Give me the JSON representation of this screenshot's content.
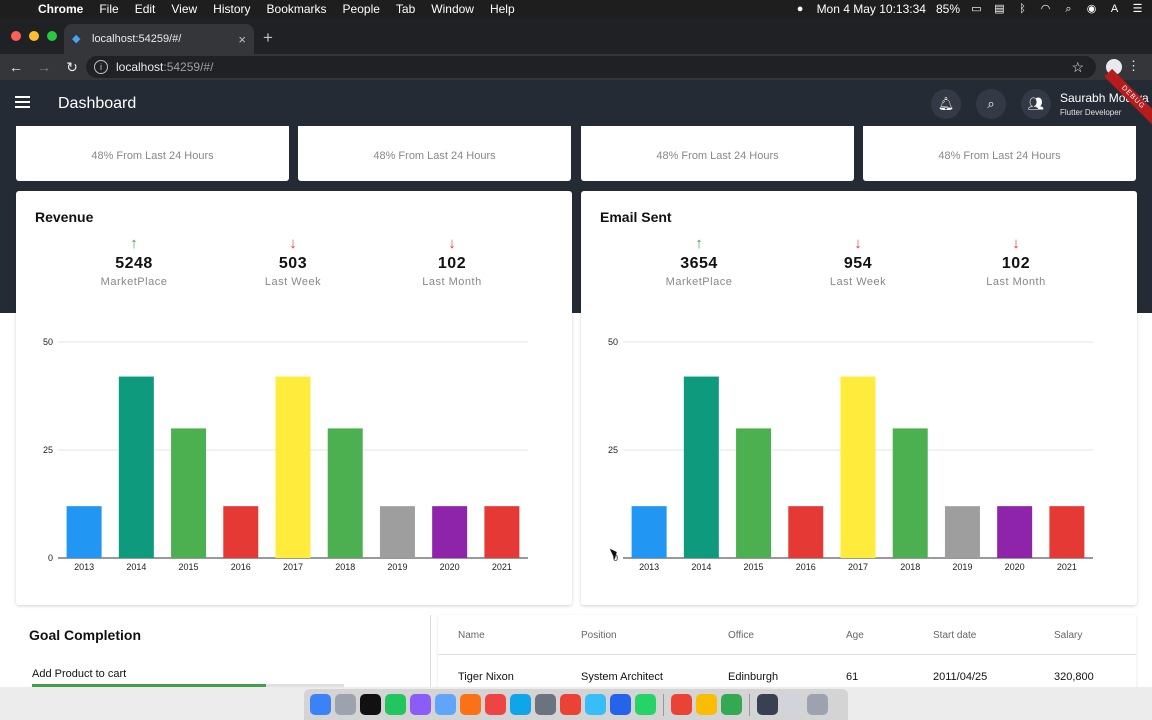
{
  "menubar": {
    "app": "Chrome",
    "items": [
      "File",
      "Edit",
      "View",
      "History",
      "Bookmarks",
      "People",
      "Tab",
      "Window",
      "Help"
    ],
    "datetime": "Mon 4 May  10:13:34",
    "battery": "85%"
  },
  "browser": {
    "tab_title": "localhost:54259/#/",
    "url_host": "localhost",
    "url_path": ":54259/#/"
  },
  "appbar": {
    "title": "Dashboard",
    "user_name": "Saurabh Mourya",
    "user_role": "Flutter Developer",
    "debug_label": "DEBUG"
  },
  "stat_cards": [
    {
      "subtitle": "48% From Last 24 Hours"
    },
    {
      "subtitle": "48% From Last 24 Hours"
    },
    {
      "subtitle": "48% From Last 24 Hours"
    },
    {
      "subtitle": "48% From Last 24 Hours"
    }
  ],
  "revenue": {
    "title": "Revenue",
    "kpis": [
      {
        "direction": "up",
        "value": "5248",
        "label": "MarketPlace"
      },
      {
        "direction": "down",
        "value": "503",
        "label": "Last Week"
      },
      {
        "direction": "down",
        "value": "102",
        "label": "Last Month"
      }
    ]
  },
  "email": {
    "title": "Email Sent",
    "kpis": [
      {
        "direction": "up",
        "value": "3654",
        "label": "MarketPlace"
      },
      {
        "direction": "down",
        "value": "954",
        "label": "Last Week"
      },
      {
        "direction": "down",
        "value": "102",
        "label": "Last Month"
      }
    ]
  },
  "chart_data": [
    {
      "type": "bar",
      "categories": [
        "2013",
        "2014",
        "2015",
        "2016",
        "2017",
        "2018",
        "2019",
        "2020",
        "2021"
      ],
      "values": [
        12,
        42,
        30,
        12,
        42,
        30,
        12,
        12,
        12
      ],
      "colors": [
        "#2196f3",
        "#0e9a7c",
        "#4caf50",
        "#e53935",
        "#ffeb3b",
        "#4caf50",
        "#9e9e9e",
        "#8e24aa",
        "#e53935"
      ],
      "ylim": [
        0,
        50
      ],
      "yticks": [
        0,
        25,
        50
      ],
      "grid": true
    },
    {
      "type": "bar",
      "categories": [
        "2013",
        "2014",
        "2015",
        "2016",
        "2017",
        "2018",
        "2019",
        "2020",
        "2021"
      ],
      "values": [
        12,
        42,
        30,
        12,
        42,
        30,
        12,
        12,
        12
      ],
      "colors": [
        "#2196f3",
        "#0e9a7c",
        "#4caf50",
        "#e53935",
        "#ffeb3b",
        "#4caf50",
        "#9e9e9e",
        "#8e24aa",
        "#e53935"
      ],
      "ylim": [
        0,
        50
      ],
      "yticks": [
        0,
        25,
        50
      ],
      "grid": true
    }
  ],
  "goal": {
    "title": "Goal Completion",
    "item_label": "Add Product to cart",
    "item_progress": 0.75
  },
  "table": {
    "headers": [
      "Name",
      "Position",
      "Office",
      "Age",
      "Start date",
      "Salary"
    ],
    "rows": [
      [
        "Tiger Nixon",
        "System Architect",
        "Edinburgh",
        "61",
        "2011/04/25",
        "320,800"
      ]
    ]
  }
}
